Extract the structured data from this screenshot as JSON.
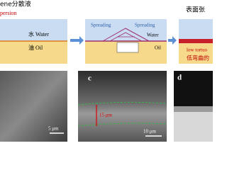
{
  "header": {
    "title": "ene分散液",
    "subtitle": "persion"
  },
  "panels": [
    {
      "water": "水 Water",
      "oil": "油 Oil"
    },
    {
      "spreading_left": "Spreading",
      "spreading_right": "Spreading",
      "water": "Water",
      "oil": "Oil"
    },
    {
      "title": "表面张",
      "note_en": "low tortuo",
      "note_cn": "低弯曲的"
    }
  ],
  "images": [
    {
      "scale": "5 μm"
    },
    {
      "label": "c",
      "thickness": "15 μm",
      "scale": "10 μm"
    },
    {
      "label": "d"
    }
  ]
}
